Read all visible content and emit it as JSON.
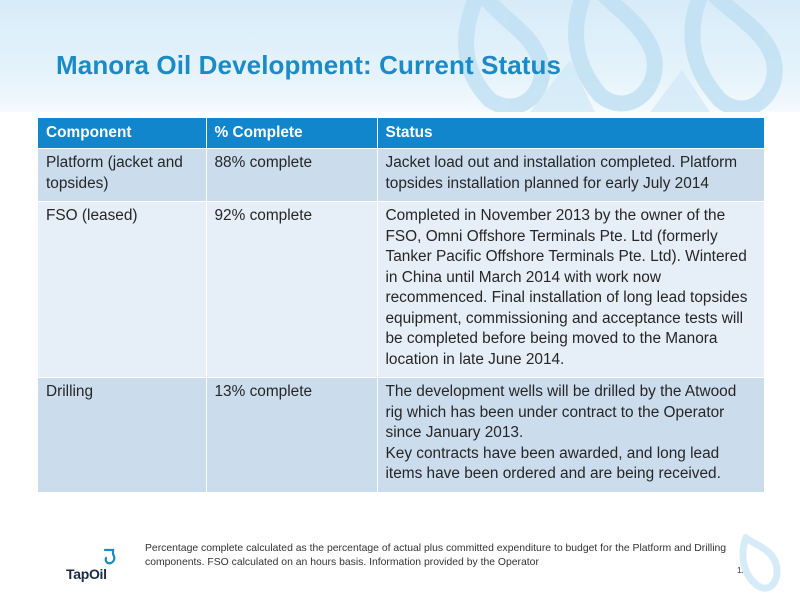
{
  "slide": {
    "title": "Manora Oil Development: Current Status",
    "page_number": "11"
  },
  "table": {
    "headers": [
      "Component",
      "% Complete",
      "Status"
    ],
    "rows": [
      {
        "component": "Platform (jacket and topsides)",
        "complete": "88% complete",
        "status": "Jacket load out and installation completed. Platform topsides installation planned for early July 2014"
      },
      {
        "component": "FSO (leased)",
        "complete": "92% complete",
        "status": "Completed in November 2013 by the owner of the FSO, Omni Offshore Terminals Pte. Ltd (formerly Tanker Pacific Offshore Terminals Pte. Ltd). Wintered in China until March 2014 with work now recommenced. Final installation of long lead topsides equipment, commissioning and acceptance tests will be completed before being moved to the Manora location in late June 2014."
      },
      {
        "component": "Drilling",
        "complete": "13% complete",
        "status_line1": "The development wells will be drilled by the Atwood rig which has been under contract to the Operator since January 2013.",
        "status_line2": "Key contracts have been awarded, and long lead items have been ordered and are being received."
      }
    ]
  },
  "footnote": "Percentage complete calculated as the percentage of actual plus committed expenditure to budget for the Platform and Drilling components.  FSO calculated on an hours basis.  Information provided by the Operator",
  "logo": {
    "text": "TapOil",
    "icon": "tap-drop-icon"
  },
  "colors": {
    "title": "#1b8bc6",
    "header_row": "#1186cc",
    "row_dark": "#cbdced",
    "row_light": "#e6eef7"
  }
}
